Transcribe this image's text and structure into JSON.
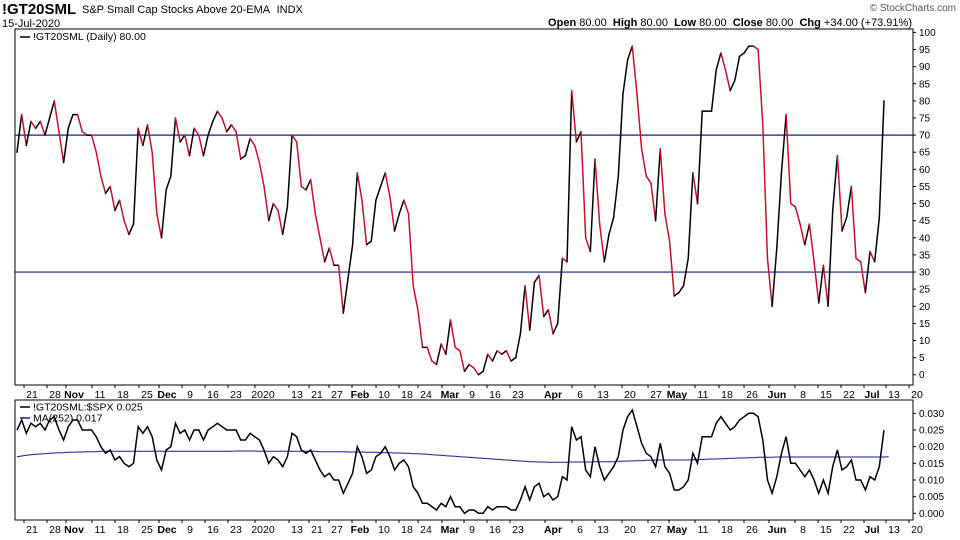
{
  "header": {
    "symbol": "!GT20SML",
    "name": "S&P Small Cap Stocks Above 20-EMA",
    "exchange": "INDX",
    "date": "15-Jul-2020",
    "logo": "© StockCharts.com",
    "open_label": "Open",
    "open": "80.00",
    "high_label": "High",
    "high": "80.00",
    "low_label": "Low",
    "low": "80.00",
    "close_label": "Close",
    "close": "80.00",
    "chg_label": "Chg",
    "chg": "+34.00 (+73.91%)"
  },
  "chart_data": [
    {
      "type": "line",
      "legend": "!GT20SML (Daily) 80.00",
      "ylim": [
        -3,
        101
      ],
      "yticks": [
        0,
        5,
        10,
        15,
        20,
        25,
        30,
        35,
        40,
        45,
        50,
        55,
        60,
        65,
        70,
        75,
        80,
        85,
        90,
        95,
        100
      ],
      "hlines": [
        70,
        30
      ],
      "up_color": "#000000",
      "down_color": "#c8102e",
      "x_labels": [
        "21",
        "28",
        "Nov",
        "11",
        "18",
        "25",
        "Dec",
        "9",
        "16",
        "23",
        "2020",
        "13",
        "21",
        "27",
        "Feb",
        "10",
        "18",
        "24",
        "Mar",
        "9",
        "16",
        "23",
        "Apr",
        "6",
        "13",
        "20",
        "27",
        "May",
        "11",
        "18",
        "26",
        "Jun",
        "8",
        "15",
        "22",
        "Jul",
        "13",
        "20"
      ],
      "values": [
        65,
        76,
        67,
        74,
        72,
        74,
        70,
        75,
        80,
        71,
        62,
        72,
        76,
        76,
        71,
        70,
        70,
        65,
        58,
        53,
        55,
        48,
        51,
        45,
        41,
        44,
        72,
        67,
        73,
        65,
        47,
        40,
        54,
        58,
        75,
        68,
        70,
        64,
        72,
        70,
        64,
        70,
        74,
        77,
        75,
        71,
        73,
        71,
        63,
        64,
        69,
        67,
        62,
        55,
        45,
        50,
        48,
        41,
        49,
        70,
        68,
        55,
        54,
        57,
        47,
        40,
        33,
        37,
        32,
        32,
        18,
        28,
        38,
        59,
        51,
        38,
        39,
        51,
        55,
        59,
        52,
        42,
        47,
        51,
        47,
        26,
        19,
        8,
        8,
        4,
        3,
        9,
        6,
        16,
        8,
        7,
        1,
        3,
        2,
        0,
        1,
        6,
        4,
        7,
        6,
        7,
        4,
        5,
        12,
        26,
        13,
        27,
        29,
        17,
        19,
        12,
        15,
        34,
        33,
        83,
        68,
        71,
        40,
        36,
        63,
        44,
        33,
        41,
        46,
        58,
        82,
        92,
        96,
        82,
        66,
        58,
        56,
        45,
        66,
        47,
        39,
        23,
        24,
        26,
        34,
        59,
        50,
        77,
        77,
        77,
        89,
        94,
        89,
        83,
        86,
        93,
        94,
        96,
        96,
        95,
        73,
        34,
        20,
        37,
        59,
        76,
        50,
        49,
        44,
        38,
        44,
        33,
        21,
        32,
        20,
        48,
        64,
        42,
        46,
        55,
        34,
        33,
        24,
        36,
        33,
        46,
        80
      ]
    },
    {
      "type": "line",
      "series": [
        {
          "name": "!GT20SML:$SPX 0.025",
          "color": "#000000",
          "values": [
            0.025,
            0.028,
            0.024,
            0.027,
            0.026,
            0.027,
            0.025,
            0.028,
            0.029,
            0.025,
            0.022,
            0.026,
            0.028,
            0.028,
            0.025,
            0.025,
            0.025,
            0.023,
            0.02,
            0.018,
            0.019,
            0.016,
            0.017,
            0.015,
            0.014,
            0.015,
            0.026,
            0.024,
            0.026,
            0.023,
            0.016,
            0.013,
            0.019,
            0.02,
            0.027,
            0.024,
            0.025,
            0.022,
            0.025,
            0.025,
            0.022,
            0.025,
            0.026,
            0.027,
            0.026,
            0.025,
            0.025,
            0.025,
            0.022,
            0.022,
            0.024,
            0.023,
            0.022,
            0.019,
            0.015,
            0.017,
            0.016,
            0.014,
            0.017,
            0.024,
            0.023,
            0.019,
            0.018,
            0.019,
            0.016,
            0.013,
            0.011,
            0.012,
            0.01,
            0.01,
            0.006,
            0.009,
            0.012,
            0.02,
            0.017,
            0.012,
            0.013,
            0.017,
            0.018,
            0.02,
            0.017,
            0.013,
            0.015,
            0.016,
            0.014,
            0.008,
            0.006,
            0.003,
            0.003,
            0.002,
            0.001,
            0.003,
            0.002,
            0.005,
            0.002,
            0.002,
            0.0,
            0.001,
            0.001,
            0.0,
            0.0,
            0.002,
            0.001,
            0.002,
            0.002,
            0.002,
            0.001,
            0.001,
            0.004,
            0.008,
            0.004,
            0.008,
            0.009,
            0.005,
            0.006,
            0.004,
            0.005,
            0.011,
            0.01,
            0.026,
            0.022,
            0.023,
            0.013,
            0.011,
            0.02,
            0.014,
            0.01,
            0.012,
            0.014,
            0.017,
            0.025,
            0.029,
            0.031,
            0.026,
            0.021,
            0.018,
            0.017,
            0.014,
            0.021,
            0.014,
            0.012,
            0.007,
            0.007,
            0.008,
            0.01,
            0.018,
            0.015,
            0.023,
            0.023,
            0.023,
            0.027,
            0.029,
            0.027,
            0.025,
            0.026,
            0.028,
            0.029,
            0.03,
            0.03,
            0.029,
            0.022,
            0.01,
            0.006,
            0.011,
            0.018,
            0.023,
            0.015,
            0.015,
            0.013,
            0.011,
            0.013,
            0.01,
            0.006,
            0.01,
            0.006,
            0.014,
            0.019,
            0.013,
            0.014,
            0.016,
            0.01,
            0.01,
            0.007,
            0.011,
            0.01,
            0.014,
            0.025
          ]
        },
        {
          "name": "MA(252) 0.017",
          "color": "#1a1a8c",
          "values": [
            0.017,
            0.0172,
            0.0174,
            0.0176,
            0.0177,
            0.0178,
            0.0179,
            0.018,
            0.0181,
            0.0182,
            0.0182,
            0.0183,
            0.0183,
            0.0184,
            0.0184,
            0.0185,
            0.0185,
            0.0185,
            0.0186,
            0.0186,
            0.0186,
            0.0186,
            0.0186,
            0.0186,
            0.0186,
            0.0186,
            0.0186,
            0.0186,
            0.0186,
            0.0186,
            0.0186,
            0.0186,
            0.0186,
            0.0186,
            0.0186,
            0.0186,
            0.0186,
            0.0186,
            0.0186,
            0.0186,
            0.0186,
            0.0186,
            0.0186,
            0.0186,
            0.0186,
            0.0186,
            0.0186,
            0.0187,
            0.0187,
            0.0187,
            0.0187,
            0.0187,
            0.0186,
            0.0186,
            0.0186,
            0.0186,
            0.0186,
            0.0186,
            0.0186,
            0.0186,
            0.0186,
            0.0186,
            0.0186,
            0.0186,
            0.0186,
            0.0185,
            0.0185,
            0.0185,
            0.0185,
            0.0185,
            0.0185,
            0.0184,
            0.0184,
            0.0184,
            0.0184,
            0.0183,
            0.0183,
            0.0183,
            0.0182,
            0.0182,
            0.0182,
            0.0181,
            0.0181,
            0.018,
            0.018,
            0.0179,
            0.0179,
            0.0178,
            0.0177,
            0.0176,
            0.0175,
            0.0174,
            0.0173,
            0.0172,
            0.0171,
            0.017,
            0.0169,
            0.0168,
            0.0167,
            0.0166,
            0.0165,
            0.0164,
            0.0163,
            0.0162,
            0.0161,
            0.016,
            0.0159,
            0.0158,
            0.0157,
            0.0156,
            0.0155,
            0.0155,
            0.0154,
            0.0154,
            0.0153,
            0.0153,
            0.0153,
            0.0153,
            0.0153,
            0.0154,
            0.0154,
            0.0154,
            0.0154,
            0.0154,
            0.0155,
            0.0155,
            0.0155,
            0.0155,
            0.0155,
            0.0156,
            0.0156,
            0.0157,
            0.0157,
            0.0158,
            0.0158,
            0.0159,
            0.0159,
            0.016,
            0.016,
            0.016,
            0.016,
            0.016,
            0.016,
            0.016,
            0.016,
            0.0161,
            0.0161,
            0.0162,
            0.0162,
            0.0163,
            0.0163,
            0.0164,
            0.0164,
            0.0165,
            0.0165,
            0.0166,
            0.0166,
            0.0167,
            0.0167,
            0.0168,
            0.0168,
            0.0168,
            0.0168,
            0.0169,
            0.0169,
            0.0169,
            0.0169,
            0.0169,
            0.0169,
            0.0169,
            0.0169,
            0.0169,
            0.0169,
            0.0169,
            0.0169,
            0.0169,
            0.0169,
            0.0169,
            0.0169,
            0.0169,
            0.0169,
            0.0169,
            0.0169,
            0.0169,
            0.0169,
            0.0169,
            0.0169,
            0.017
          ]
        }
      ],
      "ylim": [
        -0.002,
        0.034
      ],
      "yticks": [
        0.0,
        0.005,
        0.01,
        0.015,
        0.02,
        0.025,
        0.03
      ],
      "x_labels": [
        "21",
        "28",
        "Nov",
        "11",
        "18",
        "25",
        "Dec",
        "9",
        "16",
        "23",
        "2020",
        "13",
        "21",
        "27",
        "Feb",
        "10",
        "18",
        "24",
        "Mar",
        "9",
        "16",
        "23",
        "Apr",
        "6",
        "13",
        "20",
        "27",
        "May",
        "11",
        "18",
        "26",
        "Jun",
        "8",
        "15",
        "22",
        "Jul",
        "13",
        "20"
      ]
    }
  ]
}
